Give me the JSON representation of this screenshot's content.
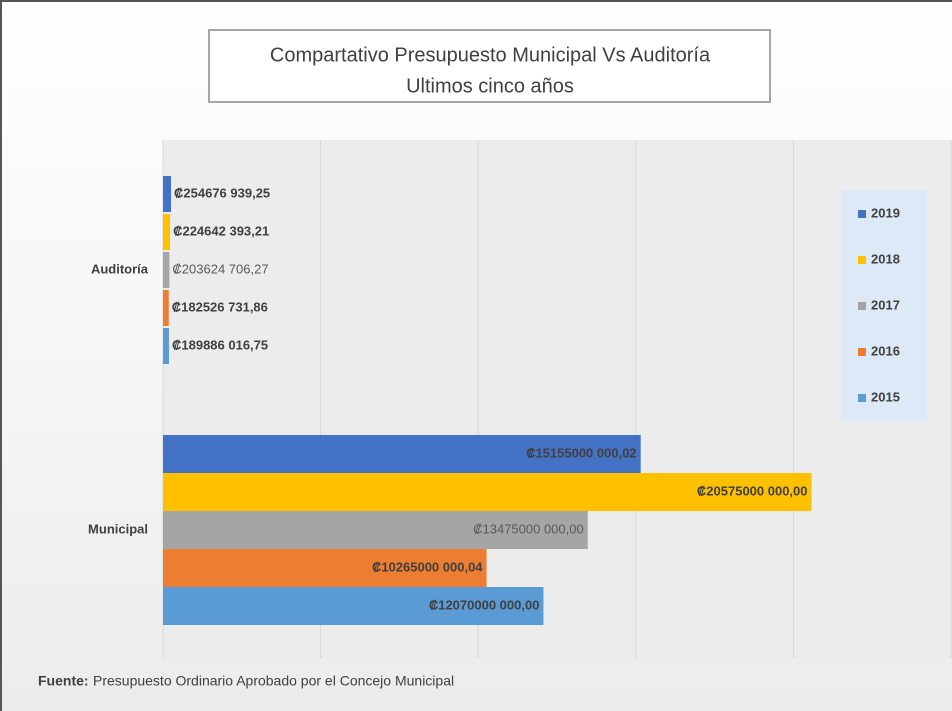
{
  "chart_data": {
    "type": "bar",
    "orientation": "horizontal",
    "title": [
      "Compartativo Presupuesto Municipal Vs Auditoría",
      "Ultimos cinco años"
    ],
    "categories": [
      "Auditoría",
      "Municipal"
    ],
    "series": [
      {
        "name": "2019",
        "color": "#4472c4",
        "values": [
          254676939.25,
          15155000000.02
        ],
        "value_labels": [
          "₡254676 939,25",
          "₡15155000 000,02"
        ]
      },
      {
        "name": "2018",
        "color": "#ffc000",
        "values": [
          224642393.21,
          20575000000.0
        ],
        "value_labels": [
          "₡224642 393,21",
          "₡20575000 000,00"
        ]
      },
      {
        "name": "2017",
        "color": "#a5a5a5",
        "values": [
          203624706.27,
          13475000000.0
        ],
        "value_labels": [
          "₡203624 706,27",
          "₡13475000 000,00"
        ]
      },
      {
        "name": "2016",
        "color": "#ed7d31",
        "values": [
          182526731.86,
          10265000000.04
        ],
        "value_labels": [
          "₡182526 731,86",
          "₡10265000 000,04"
        ]
      },
      {
        "name": "2015",
        "color": "#5b9bd5",
        "values": [
          189886016.75,
          12070000000.0
        ],
        "value_labels": [
          "₡189886 016,75",
          "₡12070000 000,00"
        ]
      }
    ],
    "xlim": [
      0,
      25000000000
    ],
    "xticks": [
      0,
      5000000000,
      10000000000,
      15000000000,
      20000000000,
      25000000000
    ],
    "grid": true,
    "legend": "right",
    "source_label": "Fuente:",
    "source_text": "Presupuesto Ordinario Aprobado por el Concejo Municipal"
  }
}
